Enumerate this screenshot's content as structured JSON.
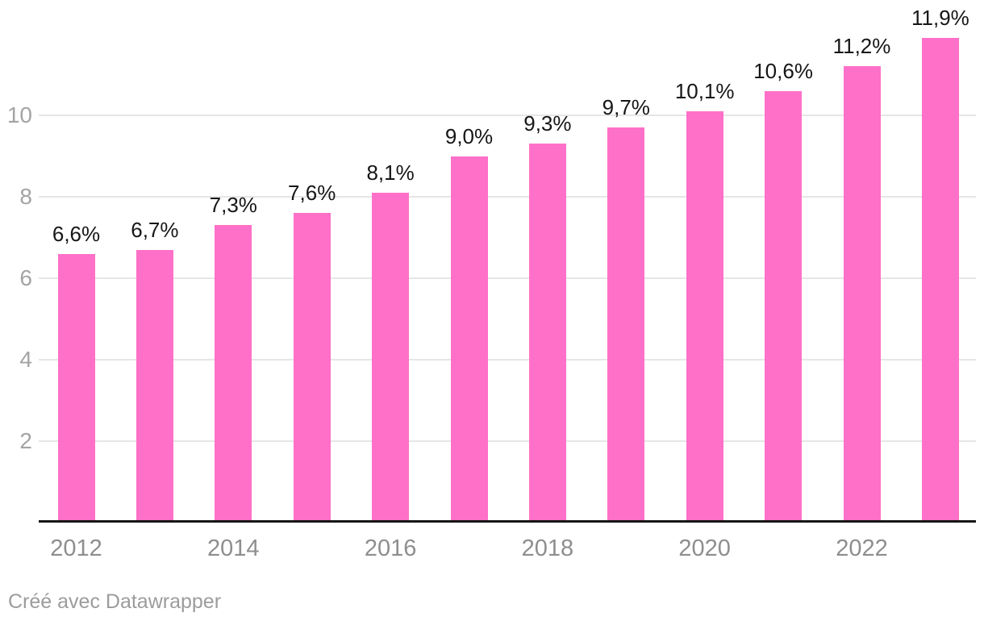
{
  "chart_data": {
    "type": "bar",
    "categories": [
      "2012",
      "2013",
      "2014",
      "2015",
      "2016",
      "2017",
      "2018",
      "2019",
      "2020",
      "2021",
      "2022",
      "2023"
    ],
    "values": [
      6.6,
      6.7,
      7.3,
      7.6,
      8.1,
      9.0,
      9.3,
      9.7,
      10.1,
      10.6,
      11.2,
      11.9
    ],
    "value_labels": [
      "6,6%",
      "6,7%",
      "7,3%",
      "7,6%",
      "8,1%",
      "9,0%",
      "9,3%",
      "9,7%",
      "10,1%",
      "10,6%",
      "11,2%",
      "11,9%"
    ],
    "title": "",
    "xlabel": "",
    "ylabel": "",
    "ylim": [
      0,
      12
    ],
    "y_ticks": [
      2,
      4,
      6,
      8,
      10
    ],
    "x_tick_labels": [
      "2012",
      "2014",
      "2016",
      "2018",
      "2020",
      "2022"
    ],
    "grid": true,
    "legend": false,
    "bar_color": "#ff70c8",
    "value_label_color": "#161616",
    "axis_line_color": "#161616",
    "gridline_color": "#e6e6e6",
    "y_tick_color": "#a4a4a4",
    "x_tick_color": "#8e8e8e"
  },
  "footer": {
    "credit": "Créé avec Datawrapper"
  }
}
